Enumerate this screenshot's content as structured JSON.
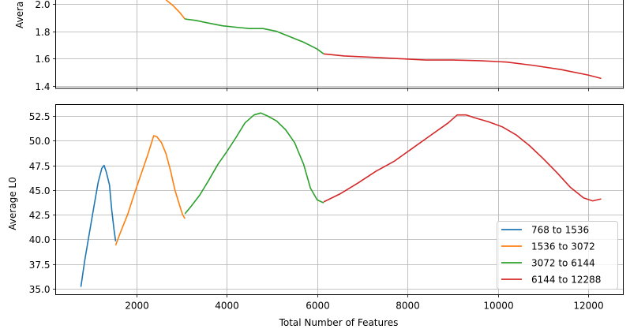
{
  "chart_data": [
    {
      "type": "line",
      "title": "",
      "ylabel": "Average MSE",
      "ylabel_visible": "Avera",
      "xlabel": "",
      "ylim": [
        1.38,
        2.02
      ],
      "xlim": [
        250,
        12850
      ],
      "yticks": [
        "1.4",
        "1.6",
        "1.8",
        "2.0"
      ],
      "ytick_values": [
        1.4,
        1.6,
        1.8,
        2.0
      ],
      "xticks": [
        2000,
        4000,
        6000,
        8000,
        10000,
        12000
      ],
      "grid": true,
      "series": [
        {
          "name": "1536 to 3072",
          "color": "#ff7f0e",
          "x": [
            2650,
            2800,
            2950,
            3072
          ],
          "y": [
            2.03,
            1.99,
            1.94,
            1.89
          ]
        },
        {
          "name": "3072 to 6144",
          "color": "#2ca02c",
          "x": [
            3072,
            3300,
            3600,
            3900,
            4200,
            4500,
            4800,
            5100,
            5400,
            5700,
            6000,
            6144
          ],
          "y": [
            1.89,
            1.88,
            1.86,
            1.84,
            1.83,
            1.82,
            1.82,
            1.8,
            1.76,
            1.72,
            1.67,
            1.635
          ]
        },
        {
          "name": "6144 to 12288",
          "color": "#d62728",
          "x": [
            6144,
            6600,
            7200,
            7800,
            8400,
            9000,
            9600,
            10200,
            10800,
            11400,
            12000,
            12288
          ],
          "y": [
            1.635,
            1.62,
            1.61,
            1.6,
            1.59,
            1.59,
            1.585,
            1.575,
            1.55,
            1.52,
            1.48,
            1.455
          ]
        }
      ]
    },
    {
      "type": "line",
      "title": "",
      "ylabel": "Average L0",
      "xlabel": "Total Number of Features",
      "ylim": [
        34.3,
        53.8
      ],
      "xlim": [
        250,
        12850
      ],
      "yticks": [
        "35.0",
        "37.5",
        "40.0",
        "42.5",
        "45.0",
        "47.5",
        "50.0",
        "52.5"
      ],
      "ytick_values": [
        35.0,
        37.5,
        40.0,
        42.5,
        45.0,
        47.5,
        50.0,
        52.5
      ],
      "xticks": [
        2000,
        4000,
        6000,
        8000,
        10000,
        12000
      ],
      "xtick_labels": [
        "2000",
        "4000",
        "6000",
        "8000",
        "10000",
        "12000"
      ],
      "grid": true,
      "legend_position": "lower right",
      "series": [
        {
          "name": "768 to 1536",
          "color": "#1f77b4",
          "x": [
            768,
            850,
            950,
            1050,
            1150,
            1230,
            1280,
            1330,
            1400,
            1450,
            1500,
            1536
          ],
          "y": [
            35.2,
            37.8,
            40.5,
            43.2,
            45.8,
            47.2,
            47.5,
            46.8,
            45.5,
            43.0,
            41.0,
            39.8
          ]
        },
        {
          "name": "1536 to 3072",
          "color": "#ff7f0e",
          "x": [
            1536,
            1650,
            1800,
            1950,
            2100,
            2250,
            2380,
            2450,
            2550,
            2650,
            2750,
            2850,
            2950,
            3020,
            3072
          ],
          "y": [
            39.4,
            40.8,
            42.5,
            44.6,
            46.6,
            48.6,
            50.5,
            50.4,
            49.8,
            48.7,
            47.0,
            45.0,
            43.5,
            42.5,
            42.1
          ]
        },
        {
          "name": "3072 to 6144",
          "color": "#2ca02c",
          "x": [
            3072,
            3200,
            3400,
            3600,
            3800,
            4000,
            4200,
            4400,
            4600,
            4750,
            4900,
            5100,
            5300,
            5500,
            5700,
            5850,
            6000,
            6144
          ],
          "y": [
            42.6,
            43.3,
            44.5,
            46.0,
            47.6,
            48.9,
            50.3,
            51.8,
            52.6,
            52.8,
            52.5,
            52.0,
            51.1,
            49.8,
            47.6,
            45.2,
            44.0,
            43.7
          ]
        },
        {
          "name": "6144 to 12288",
          "color": "#d62728",
          "x": [
            6144,
            6500,
            6900,
            7300,
            7700,
            8100,
            8500,
            8900,
            9100,
            9300,
            9500,
            9800,
            10100,
            10400,
            10700,
            11000,
            11300,
            11600,
            11900,
            12100,
            12288
          ],
          "y": [
            43.8,
            44.6,
            45.7,
            46.9,
            47.9,
            49.2,
            50.5,
            51.8,
            52.6,
            52.6,
            52.3,
            51.9,
            51.4,
            50.6,
            49.5,
            48.2,
            46.8,
            45.3,
            44.2,
            43.9,
            44.1
          ]
        }
      ]
    }
  ]
}
